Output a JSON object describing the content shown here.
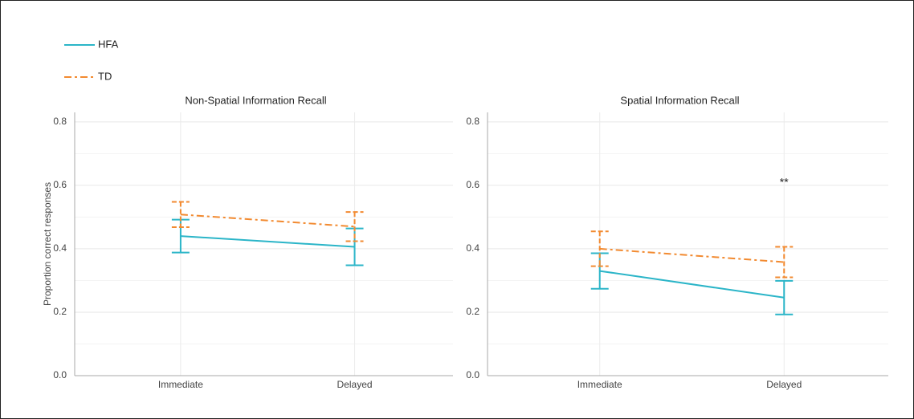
{
  "chart_data": [
    {
      "type": "line",
      "title": "Non-Spatial Information Recall",
      "ylabel": "Proportion correct responses",
      "categories": [
        "Immediate",
        "Delayed"
      ],
      "series": [
        {
          "name": "HFA",
          "color": "#2bb5c8",
          "linestyle": "solid",
          "values": [
            0.44,
            0.406
          ],
          "errors": [
            0.052,
            0.058
          ]
        },
        {
          "name": "TD",
          "color": "#f28a30",
          "linestyle": "dashdot",
          "values": [
            0.508,
            0.47
          ],
          "errors": [
            0.04,
            0.046
          ]
        }
      ],
      "ylim": [
        0,
        0.83
      ],
      "yticks": [
        {
          "value": 0,
          "label": "0.0"
        },
        0.2,
        0.4,
        0.6,
        0.8
      ],
      "grid": true
    },
    {
      "type": "line",
      "title": "Spatial Information Recall",
      "categories": [
        "Immediate",
        "Delayed"
      ],
      "series": [
        {
          "name": "HFA",
          "color": "#2bb5c8",
          "linestyle": "solid",
          "values": [
            0.33,
            0.246
          ],
          "errors": [
            0.056,
            0.053
          ]
        },
        {
          "name": "TD",
          "color": "#f28a30",
          "linestyle": "dashdot",
          "values": [
            0.4,
            0.358
          ],
          "errors": [
            0.055,
            0.048
          ]
        }
      ],
      "annotation": "**",
      "ylim": [
        0,
        0.83
      ],
      "yticks": [
        {
          "value": 0,
          "label": "0.0"
        },
        0.2,
        0.4,
        0.6,
        0.8
      ],
      "grid": true
    }
  ]
}
